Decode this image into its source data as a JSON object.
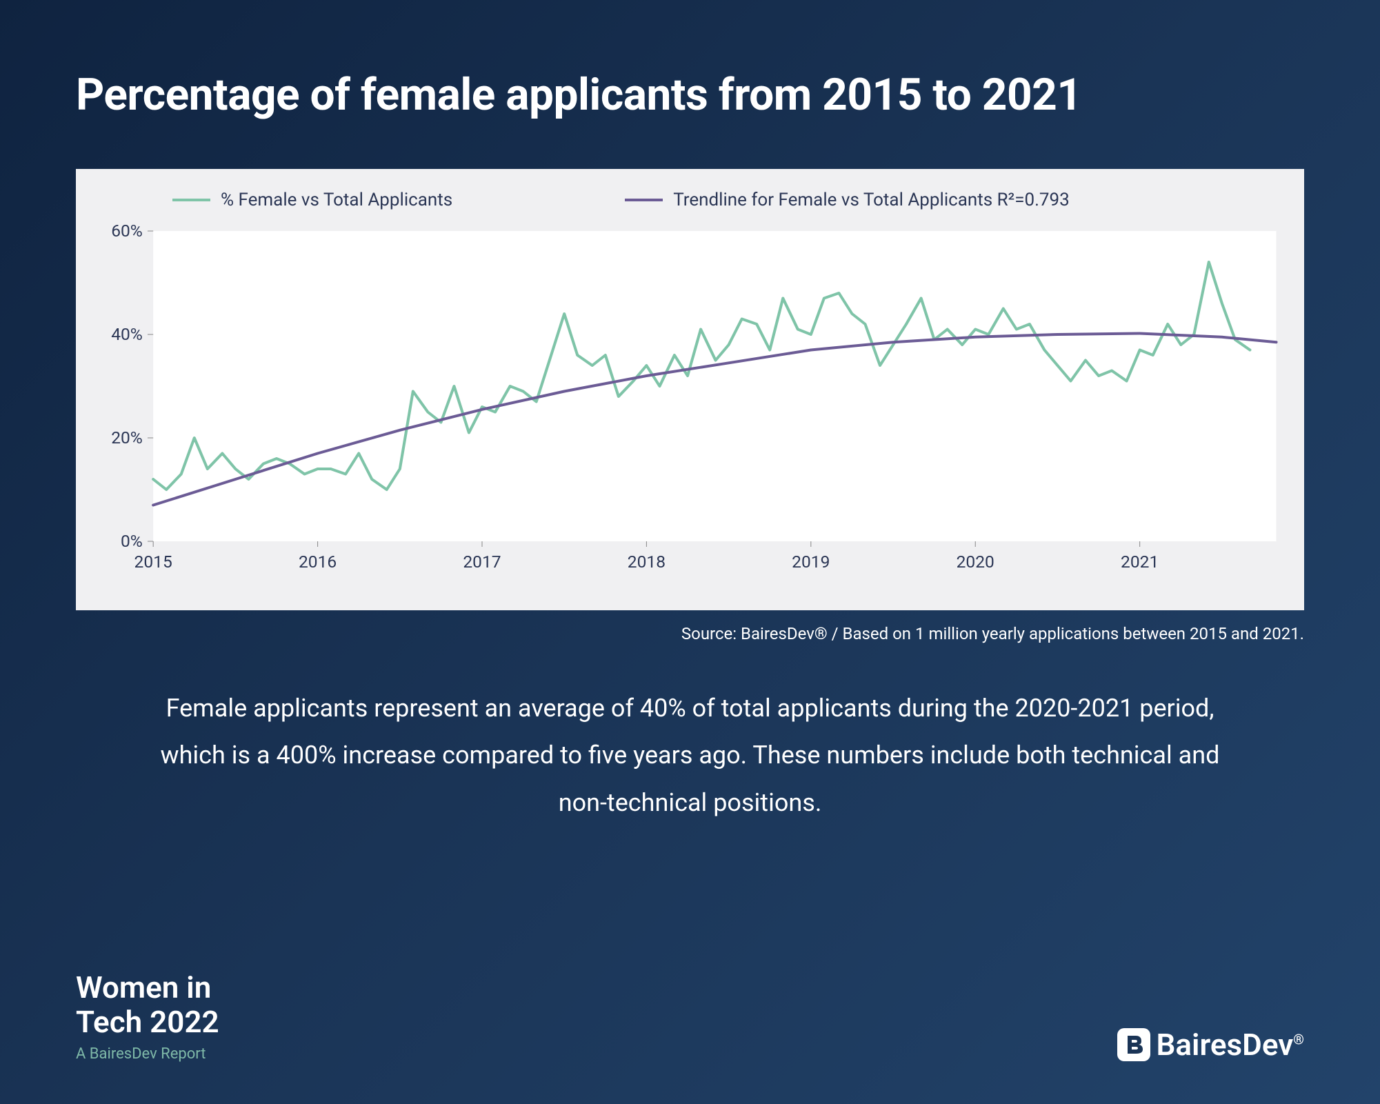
{
  "title": "Percentage of female applicants from 2015 to 2021",
  "chart": {
    "type": "line",
    "background_color": "#f0f0f2",
    "plot_background_color": "#ffffff",
    "legend": [
      {
        "label": "% Female vs Total Applicants",
        "color": "#7fc4a8",
        "width": 4
      },
      {
        "label": "Trendline for Female vs Total Applicants R²=0.793",
        "color": "#6b5b95",
        "width": 4
      }
    ],
    "y_axis": {
      "min": 0,
      "max": 60,
      "tick_step": 20,
      "ticks": [
        "0%",
        "20%",
        "40%",
        "60%"
      ],
      "label_color": "#2b3655",
      "label_fontsize": 24
    },
    "x_axis": {
      "min": 2015,
      "max": 2021.83,
      "ticks": [
        "2015",
        "2016",
        "2017",
        "2018",
        "2019",
        "2020",
        "2021"
      ],
      "tick_positions": [
        2015,
        2016,
        2017,
        2018,
        2019,
        2020,
        2021
      ],
      "label_color": "#2b3655",
      "label_fontsize": 24
    },
    "series_data": {
      "x": [
        2015.0,
        2015.08,
        2015.17,
        2015.25,
        2015.33,
        2015.42,
        2015.5,
        2015.58,
        2015.67,
        2015.75,
        2015.83,
        2015.92,
        2016.0,
        2016.08,
        2016.17,
        2016.25,
        2016.33,
        2016.42,
        2016.5,
        2016.58,
        2016.67,
        2016.75,
        2016.83,
        2016.92,
        2017.0,
        2017.08,
        2017.17,
        2017.25,
        2017.33,
        2017.42,
        2017.5,
        2017.58,
        2017.67,
        2017.75,
        2017.83,
        2017.92,
        2018.0,
        2018.08,
        2018.17,
        2018.25,
        2018.33,
        2018.42,
        2018.5,
        2018.58,
        2018.67,
        2018.75,
        2018.83,
        2018.92,
        2019.0,
        2019.08,
        2019.17,
        2019.25,
        2019.33,
        2019.42,
        2019.5,
        2019.58,
        2019.67,
        2019.75,
        2019.83,
        2019.92,
        2020.0,
        2020.08,
        2020.17,
        2020.25,
        2020.33,
        2020.42,
        2020.5,
        2020.58,
        2020.67,
        2020.75,
        2020.83,
        2020.92,
        2021.0,
        2021.08,
        2021.17,
        2021.25,
        2021.33,
        2021.42,
        2021.5,
        2021.58,
        2021.67
      ],
      "y": [
        12,
        10,
        13,
        20,
        14,
        17,
        14,
        12,
        15,
        16,
        15,
        13,
        14,
        14,
        13,
        17,
        12,
        10,
        14,
        29,
        25,
        23,
        30,
        21,
        26,
        25,
        30,
        29,
        27,
        36,
        44,
        36,
        34,
        36,
        28,
        31,
        34,
        30,
        36,
        32,
        41,
        35,
        38,
        43,
        42,
        37,
        47,
        41,
        40,
        47,
        48,
        44,
        42,
        34,
        38,
        42,
        47,
        39,
        41,
        38,
        41,
        40,
        45,
        41,
        42,
        37,
        34,
        31,
        35,
        32,
        33,
        31,
        37,
        36,
        42,
        38,
        40,
        54,
        46,
        39,
        37
      ],
      "color": "#7fc4a8",
      "line_width": 4
    },
    "trendline": {
      "x": [
        2015.0,
        2015.5,
        2016.0,
        2016.5,
        2017.0,
        2017.5,
        2018.0,
        2018.5,
        2019.0,
        2019.5,
        2020.0,
        2020.5,
        2021.0,
        2021.5,
        2021.83
      ],
      "y": [
        7,
        12,
        17,
        21.5,
        25.5,
        29,
        32,
        34.5,
        37,
        38.5,
        39.5,
        40,
        40.2,
        39.5,
        38.5
      ],
      "color": "#6b5b95",
      "line_width": 4
    }
  },
  "source_text": "Source: BairesDev® / Based on 1 million yearly applications between 2015 and 2021.",
  "description_text": "Female applicants represent an average of 40% of total applicants during the 2020-2021 period, which is a 400% increase compared to five years ago. These numbers include both technical and non-technical positions.",
  "footer": {
    "report_title_line1": "Women in",
    "report_title_line2": "Tech 2022",
    "report_subtitle": "A BairesDev Report",
    "brand_name": "BairesDev",
    "brand_suffix": "."
  },
  "colors": {
    "page_bg_start": "#0f2340",
    "page_bg_end": "#22436a",
    "text_white": "#ffffff",
    "text_dark": "#2b3655",
    "accent_green": "#7fb9a8"
  }
}
